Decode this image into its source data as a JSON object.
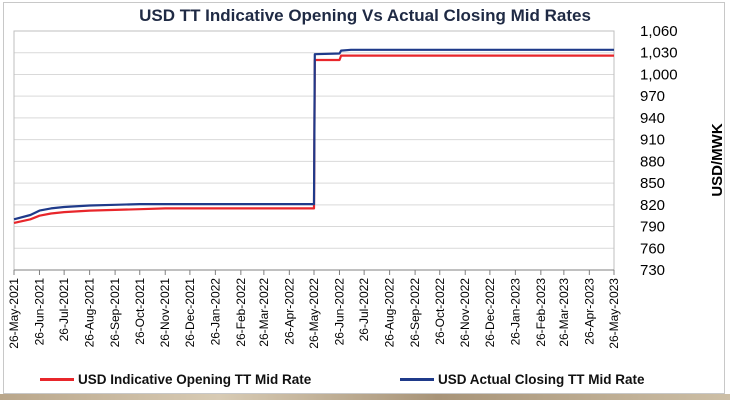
{
  "chart_data": {
    "type": "line",
    "title": "USD TT Indicative Opening Vs Actual Closing Mid Rates",
    "ylabel": "USD/MWK",
    "xlabel": "",
    "ylim": [
      730,
      1060
    ],
    "yticks": [
      "730",
      "760",
      "790",
      "820",
      "850",
      "880",
      "910",
      "940",
      "970",
      "1,000",
      "1,030",
      "1,060"
    ],
    "ytick_values": [
      730,
      760,
      790,
      820,
      850,
      880,
      910,
      940,
      970,
      1000,
      1030,
      1060
    ],
    "categories": [
      "26-May-2021",
      "26-Jun-2021",
      "26-Jul-2021",
      "26-Aug-2021",
      "26-Sep-2021",
      "26-Oct-2021",
      "26-Nov-2021",
      "26-Dec-2021",
      "26-Jan-2022",
      "26-Feb-2022",
      "26-Mar-2022",
      "26-Apr-2022",
      "26-May-2022",
      "26-Jun-2022",
      "26-Jul-2022",
      "26-Aug-2022",
      "26-Sep-2022",
      "26-Oct-2022",
      "26-Nov-2022",
      "26-Dec-2022",
      "26-Jan-2023",
      "26-Feb-2023",
      "26-Mar-2023",
      "26-Apr-2023",
      "26-May-2023"
    ],
    "grid": true,
    "legend_position": "bottom",
    "series": [
      {
        "name": "USD Indicative Opening TT Mid Rate",
        "color": "#e8262b",
        "x": [
          "26-May-2021",
          "15-Jun-2021",
          "26-Jun-2021",
          "10-Jul-2021",
          "26-Jul-2021",
          "26-Aug-2021",
          "26-Sep-2021",
          "26-Oct-2021",
          "26-Nov-2021",
          "26-Dec-2021",
          "26-Jan-2022",
          "26-Feb-2022",
          "26-Mar-2022",
          "26-Apr-2022",
          "26-May-2022",
          "27-May-2022",
          "26-Jun-2022",
          "28-Jun-2022",
          "10-Jul-2022",
          "26-Jul-2022",
          "26-Aug-2022",
          "26-Sep-2022",
          "26-Oct-2022",
          "26-Nov-2022",
          "26-Dec-2022",
          "26-Jan-2023",
          "26-Feb-2023",
          "26-Mar-2023",
          "26-Apr-2023",
          "26-May-2023"
        ],
        "values": [
          795,
          800,
          805,
          808,
          810,
          812,
          813,
          814,
          815,
          815,
          815,
          815,
          815,
          815,
          815,
          1020,
          1020,
          1026,
          1026,
          1026,
          1026,
          1026,
          1026,
          1026,
          1026,
          1026,
          1026,
          1026,
          1026,
          1026
        ]
      },
      {
        "name": "USD Actual Closing TT Mid Rate",
        "color": "#1f3a8a",
        "x": [
          "26-May-2021",
          "15-Jun-2021",
          "26-Jun-2021",
          "10-Jul-2021",
          "26-Jul-2021",
          "26-Aug-2021",
          "26-Sep-2021",
          "26-Oct-2021",
          "26-Nov-2021",
          "26-Dec-2021",
          "26-Jan-2022",
          "26-Feb-2022",
          "26-Mar-2022",
          "26-Apr-2022",
          "26-May-2022",
          "27-May-2022",
          "26-Jun-2022",
          "28-Jun-2022",
          "10-Jul-2022",
          "26-Jul-2022",
          "26-Aug-2022",
          "26-Sep-2022",
          "26-Oct-2022",
          "26-Nov-2022",
          "26-Dec-2022",
          "26-Jan-2023",
          "26-Feb-2023",
          "26-Mar-2023",
          "26-Apr-2023",
          "26-May-2023"
        ],
        "values": [
          800,
          806,
          812,
          815,
          817,
          819,
          820,
          821,
          821,
          821,
          821,
          821,
          821,
          821,
          821,
          1028,
          1029,
          1033,
          1034,
          1034,
          1034,
          1034,
          1034,
          1034,
          1034,
          1034,
          1034,
          1034,
          1034,
          1034
        ]
      }
    ]
  }
}
